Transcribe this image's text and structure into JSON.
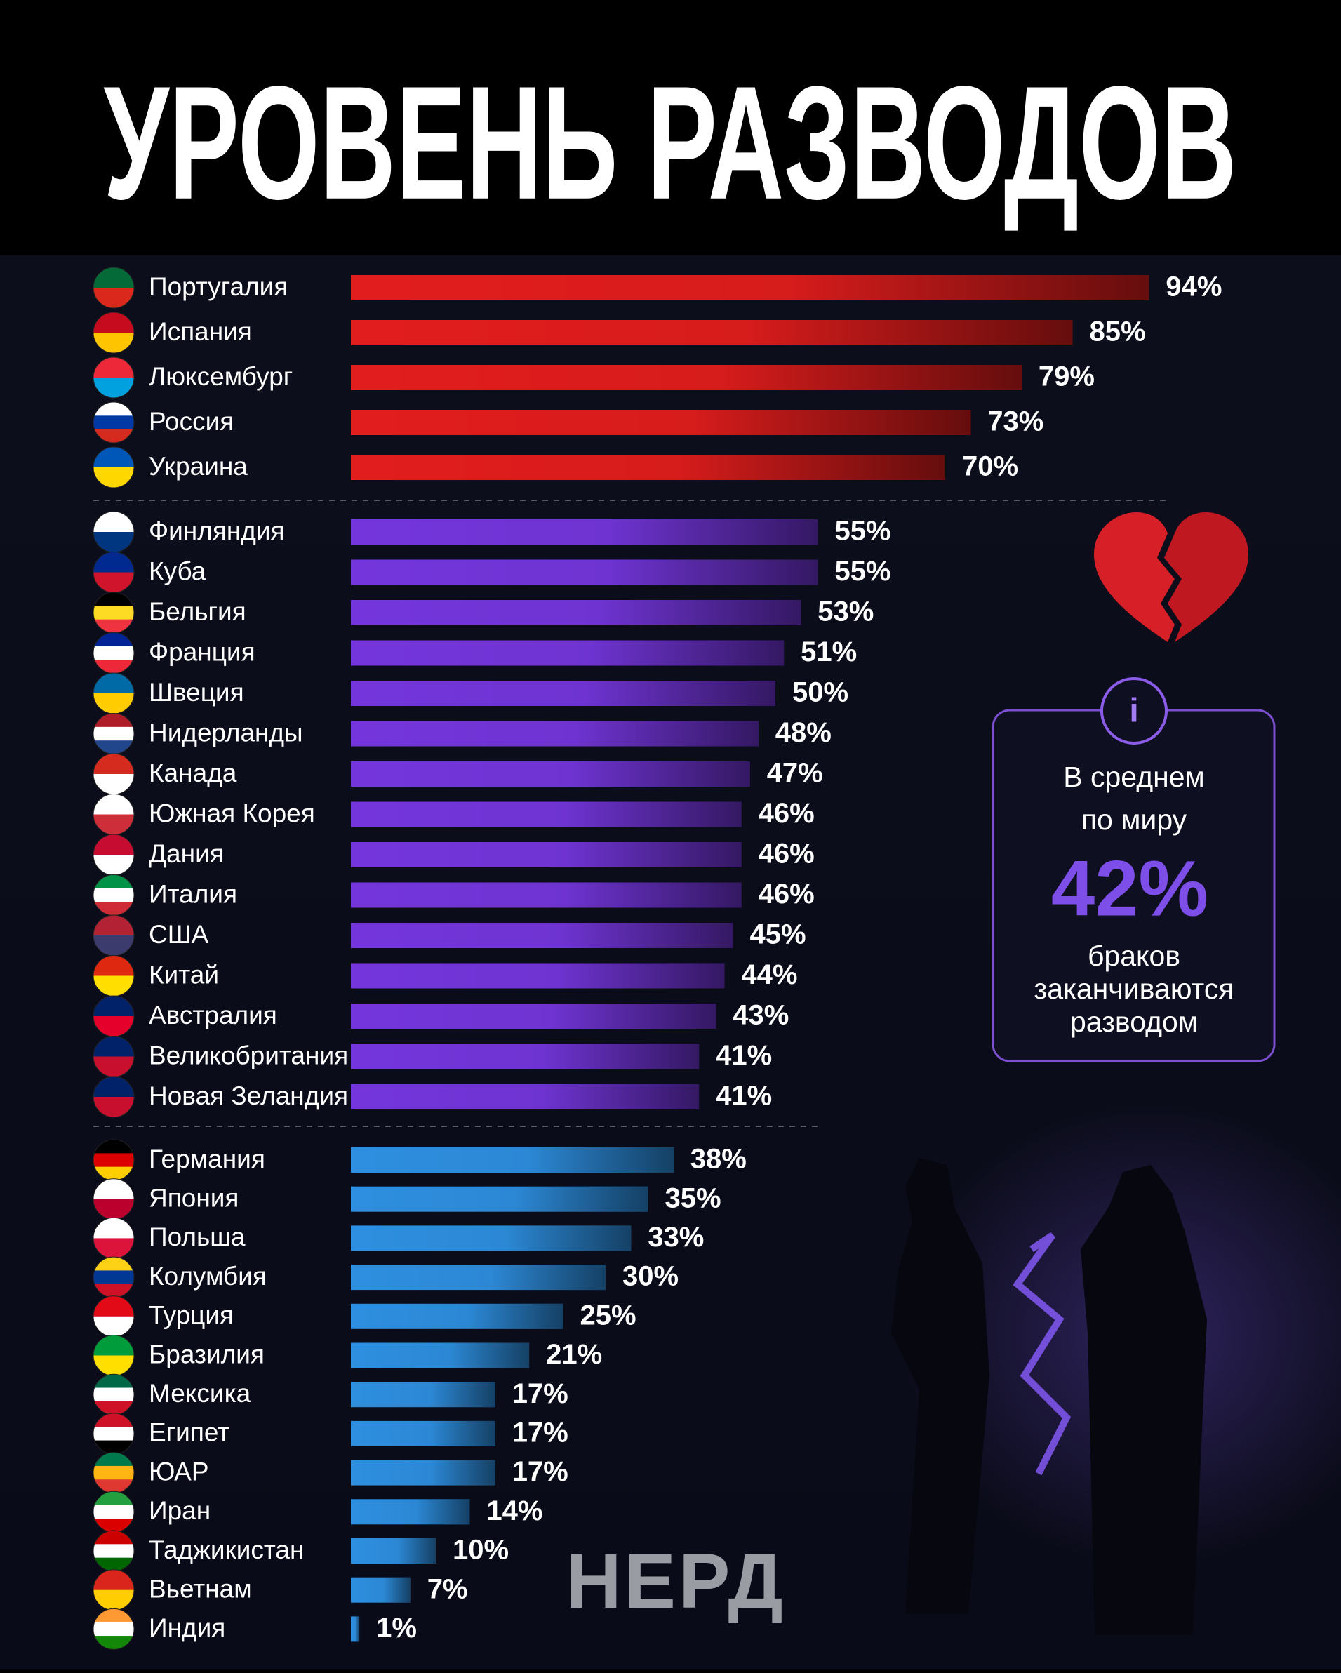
{
  "chart_data": {
    "type": "bar",
    "orientation": "horizontal",
    "title": "УРОВЕНЬ РАЗВОДОВ",
    "groups": [
      {
        "color": "#e21d1d",
        "categories": [
          "Португалия",
          "Испания",
          "Люксембург",
          "Россия",
          "Украина"
        ],
        "values": [
          94,
          85,
          79,
          73,
          70
        ],
        "value_labels": [
          "94%",
          "85%",
          "79%",
          "73%",
          "70%"
        ]
      },
      {
        "color": "#7436dc",
        "categories": [
          "Финляндия",
          "Куба",
          "Бельгия",
          "Франция",
          "Швеция",
          "Нидерланды",
          "Канада",
          "Южная Корея",
          "Дания",
          "Италия",
          "США",
          "Китай",
          "Австралия",
          "Великобритания",
          "Новая Зеландия"
        ],
        "values": [
          55,
          55,
          53,
          51,
          50,
          48,
          47,
          46,
          46,
          46,
          45,
          44,
          43,
          41,
          41
        ],
        "value_labels": [
          "55%",
          "55%",
          "53%",
          "51%",
          "50%",
          "48%",
          "47%",
          "46%",
          "46%",
          "46%",
          "45%",
          "44%",
          "43%",
          "41%",
          "41%"
        ]
      },
      {
        "color": "#2e8fe0",
        "categories": [
          "Германия",
          "Япония",
          "Польша",
          "Колумбия",
          "Турция",
          "Бразилия",
          "Мексика",
          "Египет",
          "ЮАР",
          "Иран",
          "Таджикистан",
          "Вьетнам",
          "Индия"
        ],
        "values": [
          38,
          35,
          33,
          30,
          25,
          21,
          17,
          17,
          17,
          14,
          10,
          7,
          1
        ],
        "value_labels": [
          "38%",
          "35%",
          "33%",
          "30%",
          "25%",
          "21%",
          "17%",
          "17%",
          "17%",
          "14%",
          "10%",
          "7%",
          "1%"
        ]
      }
    ],
    "annotation": {
      "text_top": [
        "В среднем",
        "по миру"
      ],
      "value_label": "42%",
      "text_bottom": [
        "браков",
        "заканчиваются",
        "разводом"
      ]
    },
    "logo": "НЕРД"
  }
}
